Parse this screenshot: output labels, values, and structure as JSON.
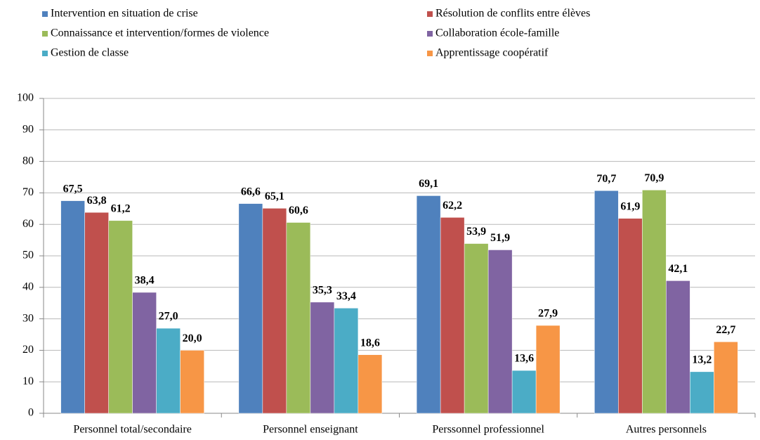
{
  "chart_data": {
    "type": "bar",
    "categories": [
      "Personnel total/secondaire",
      "Personnel enseignant",
      "Perssonnel professionnel",
      "Autres personnels"
    ],
    "series": [
      {
        "name": "Intervention en situation de crise",
        "color": "#4f81bd",
        "values": [
          67.5,
          66.6,
          69.1,
          70.7
        ],
        "value_labels": [
          "67,5",
          "66,6",
          "69,1",
          "70,7"
        ]
      },
      {
        "name": "Résolution de conflits entre élèves",
        "color": "#c0504d",
        "values": [
          63.8,
          65.1,
          62.2,
          61.9
        ],
        "value_labels": [
          "63,8",
          "65,1",
          "62,2",
          "61,9"
        ]
      },
      {
        "name": "Connaissance et intervention/formes de violence",
        "color": "#9bbb59",
        "values": [
          61.2,
          60.6,
          53.9,
          70.9
        ],
        "value_labels": [
          "61,2",
          "60,6",
          "53,9",
          "70,9"
        ]
      },
      {
        "name": "Collaboration école-famille",
        "color": "#8064a2",
        "values": [
          38.4,
          35.3,
          51.9,
          42.1
        ],
        "value_labels": [
          "38,4",
          "35,3",
          "51,9",
          "42,1"
        ]
      },
      {
        "name": "Gestion de classe",
        "color": "#4bacc6",
        "values": [
          27.0,
          33.4,
          13.6,
          13.2
        ],
        "value_labels": [
          "27,0",
          "33,4",
          "13,6",
          "13,2"
        ]
      },
      {
        "name": "Apprentissage coopératif",
        "color": "#f79646",
        "values": [
          20.0,
          18.6,
          27.9,
          22.7
        ],
        "value_labels": [
          "20,0",
          "18,6",
          "27,9",
          "22,7"
        ]
      }
    ],
    "ylim": [
      0,
      100
    ],
    "yticks": [
      0,
      10,
      20,
      30,
      40,
      50,
      60,
      70,
      80,
      90,
      100
    ],
    "grid": true,
    "legend": "top"
  }
}
